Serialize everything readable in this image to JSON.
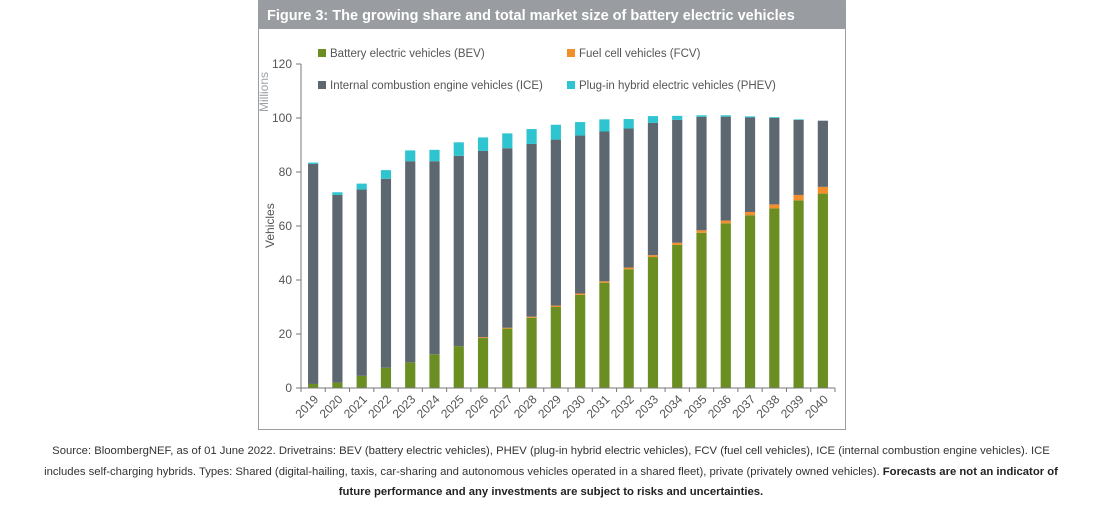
{
  "figure": {
    "title": "Figure 3: The growing share and total market size of battery electric vehicles"
  },
  "caption": {
    "line1": "Source: BloombergNEF, as of 01 June 2022. Drivetrains: BEV (battery electric vehicles), PHEV (plug-in hybrid electric vehicles), FCV (fuel cell vehicles), ICE (internal combustion engine vehicles). ICE",
    "line2_normal": "includes self-charging hybrids. Types: Shared (digital-hailing, taxis, car-sharing and autonomous vehicles operated in a shared fleet), private (privately owned vehicles). ",
    "line2_bold": "Forecasts are not an indicator of",
    "line3_bold": "future performance and any investments are subject to risks and uncertainties."
  },
  "chart_data": {
    "type": "bar",
    "stacked": true,
    "title": "Figure 3: The growing share and total market size of battery electric vehicles",
    "xlabel": "",
    "ylabel": "Vehicles",
    "yunit_label": "Millions",
    "ylim": [
      0,
      120
    ],
    "yticks": [
      0,
      20,
      40,
      60,
      80,
      100,
      120
    ],
    "grid": false,
    "legend_position": "top",
    "categories": [
      "2019",
      "2020",
      "2021",
      "2022",
      "2023",
      "2024",
      "2025",
      "2026",
      "2027",
      "2028",
      "2029",
      "2030",
      "2031",
      "2032",
      "2033",
      "2034",
      "2035",
      "2036",
      "2037",
      "2038",
      "2039",
      "2040"
    ],
    "series": [
      {
        "name": "Battery electric vehicles (BEV)",
        "color": "#6b8e23",
        "values": [
          1.5,
          2,
          4.5,
          7.5,
          9.5,
          12.5,
          15.5,
          18.5,
          22,
          26,
          30,
          34.5,
          39,
          44,
          48.5,
          53,
          57.5,
          61,
          64,
          66.5,
          69.5,
          72
        ]
      },
      {
        "name": "Fuel cell vehicles (FCV)",
        "color": "#f28e2b",
        "values": [
          0,
          0,
          0,
          0,
          0,
          0,
          0,
          0.3,
          0.3,
          0.4,
          0.5,
          0.5,
          0.5,
          0.6,
          0.7,
          0.8,
          0.9,
          1,
          1.2,
          1.5,
          2,
          2.5
        ]
      },
      {
        "name": "Internal combustion engine vehicles (ICE)",
        "color": "#5d6770",
        "values": [
          81.5,
          69.5,
          69,
          70,
          74.5,
          71.5,
          70.5,
          69,
          66.5,
          64,
          61.5,
          58.5,
          55.5,
          51.5,
          49,
          45.5,
          42,
          38.5,
          35,
          32,
          27.8,
          24.5
        ]
      },
      {
        "name": "Plug-in hybrid electric vehicles (PHEV)",
        "color": "#2ec4d0",
        "values": [
          0.5,
          1,
          2.2,
          3.2,
          4,
          4.2,
          5,
          5,
          5.5,
          5.5,
          5.5,
          5,
          4.5,
          3.5,
          2.5,
          1.5,
          0.6,
          0.5,
          0.4,
          0.3,
          0.2,
          0
        ]
      }
    ],
    "legend": [
      {
        "label": "Battery electric vehicles (BEV)",
        "color": "#6b8e23"
      },
      {
        "label": "Fuel cell vehicles (FCV)",
        "color": "#f28e2b"
      },
      {
        "label": "Internal combustion engine vehicles (ICE)",
        "color": "#5d6770"
      },
      {
        "label": "Plug-in hybrid electric vehicles (PHEV)",
        "color": "#2ec4d0"
      }
    ]
  }
}
